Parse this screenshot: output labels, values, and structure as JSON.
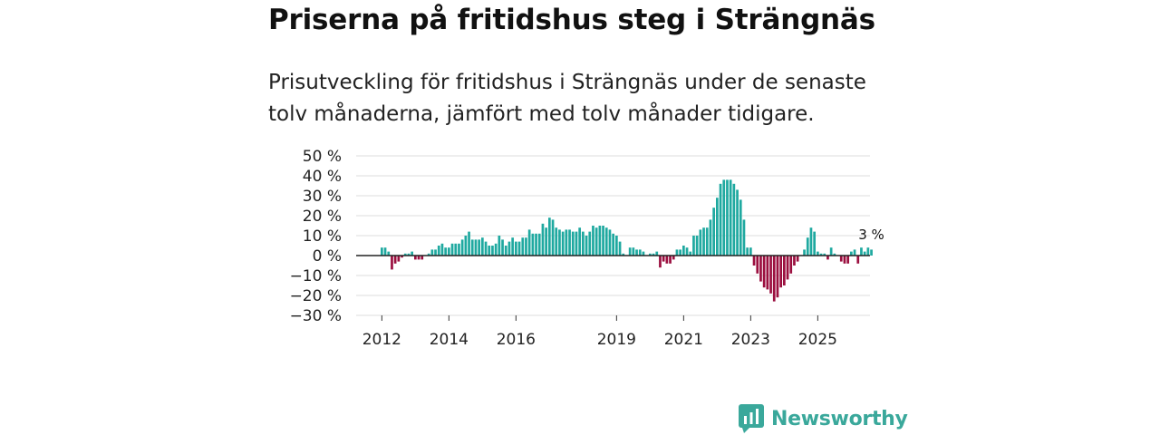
{
  "header": {
    "title": "Priserna på fritidshus steg i Strängnäs",
    "subtitle": "Prisutveckling för fritidshus i Strängnäs under de senaste tolv månaderna, jämfört med tolv månader tidigare."
  },
  "brand": {
    "name": "Newsworthy",
    "color": "#3aa89b"
  },
  "chart_data": {
    "type": "bar",
    "title": "Priserna på fritidshus steg i Strängnäs",
    "xlabel": "",
    "ylabel": "",
    "unit": "%",
    "ylim": [
      -30,
      50
    ],
    "yticks": [
      50,
      40,
      30,
      20,
      10,
      0,
      -10,
      -20,
      -30
    ],
    "ytick_labels": [
      "50 %",
      "40 %",
      "30 %",
      "20 %",
      "10 %",
      "0 %",
      "−10 %",
      "−20 %",
      "−30 %"
    ],
    "xticks": [
      {
        "label": "2012",
        "index": 0
      },
      {
        "label": "2014",
        "index": 20
      },
      {
        "label": "2016",
        "index": 40
      },
      {
        "label": "2019",
        "index": 70
      },
      {
        "label": "2021",
        "index": 90
      },
      {
        "label": "2023",
        "index": 110
      },
      {
        "label": "2025",
        "index": 130
      }
    ],
    "period": "monthly, start 2011-12",
    "colors": {
      "positive": "#1fa9a0",
      "negative": "#9b0f3f",
      "grid": "#dddddd",
      "zero": "#222222"
    },
    "values": [
      4,
      4,
      2,
      -7,
      -4,
      -3,
      -1,
      1,
      1,
      2,
      -2,
      -2,
      -2,
      0,
      1,
      3,
      3,
      5,
      6,
      4,
      4,
      6,
      6,
      6,
      8,
      10,
      12,
      8,
      8,
      8,
      9,
      7,
      5,
      5,
      6,
      10,
      8,
      5,
      7,
      9,
      7,
      7,
      9,
      9,
      13,
      11,
      11,
      11,
      16,
      14,
      19,
      18,
      14,
      13,
      12,
      13,
      13,
      12,
      12,
      14,
      12,
      10,
      12,
      15,
      14,
      15,
      15,
      14,
      13,
      11,
      10,
      7,
      1,
      0,
      4,
      4,
      3,
      3,
      2,
      0,
      1,
      1,
      2,
      -6,
      -3,
      -4,
      -4,
      -2,
      3,
      3,
      5,
      4,
      2,
      10,
      10,
      13,
      14,
      14,
      18,
      24,
      29,
      36,
      38,
      38,
      38,
      36,
      33,
      28,
      18,
      4,
      4,
      -5,
      -9,
      -13,
      -16,
      -17,
      -19,
      -23,
      -21,
      -16,
      -15,
      -12,
      -9,
      -5,
      -3,
      0,
      3,
      9,
      14,
      12,
      2,
      1,
      1,
      -2,
      4,
      1,
      0,
      -3,
      -4,
      -4,
      2,
      3,
      -4,
      4,
      2,
      4,
      3
    ],
    "annotations": [
      {
        "index": 146,
        "text": "3 %"
      }
    ]
  }
}
